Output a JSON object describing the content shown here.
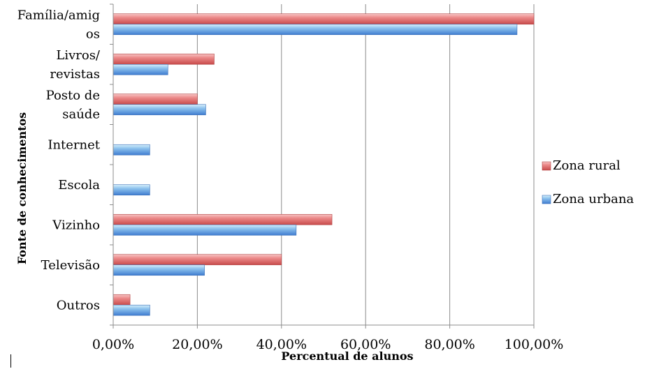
{
  "chart_data": {
    "type": "bar",
    "orientation": "horizontal",
    "categories": [
      "Família/amigos",
      "Livros/ revistas",
      "Posto de saúde",
      "Internet",
      "Escola",
      "Vizinho",
      "Televisão",
      "Outros"
    ],
    "category_lines": [
      [
        "Família/amig",
        "os"
      ],
      [
        "Livros/",
        "revistas"
      ],
      [
        "Posto de",
        "saúde"
      ],
      [
        "Internet"
      ],
      [
        "Escola"
      ],
      [
        "Vizinho"
      ],
      [
        "Televisão"
      ],
      [
        "Outros"
      ]
    ],
    "series": [
      {
        "name": "Zona rural",
        "color": "#e06666",
        "values": [
          100,
          24,
          20,
          0,
          0,
          52,
          40,
          4
        ]
      },
      {
        "name": "Zona urbana",
        "color": "#5b8fd6",
        "values": [
          96,
          13,
          22,
          8.7,
          8.7,
          43.5,
          21.7,
          8.7
        ]
      }
    ],
    "xlim": [
      0,
      100
    ],
    "xticks": [
      "0,00%",
      "20,00%",
      "40,00%",
      "60,00%",
      "80,00%",
      "100,00%"
    ],
    "xlabel": "Percentual  de alunos",
    "ylabel": "Fonte de conhecimentos",
    "grid": true,
    "legend_position": "right"
  }
}
